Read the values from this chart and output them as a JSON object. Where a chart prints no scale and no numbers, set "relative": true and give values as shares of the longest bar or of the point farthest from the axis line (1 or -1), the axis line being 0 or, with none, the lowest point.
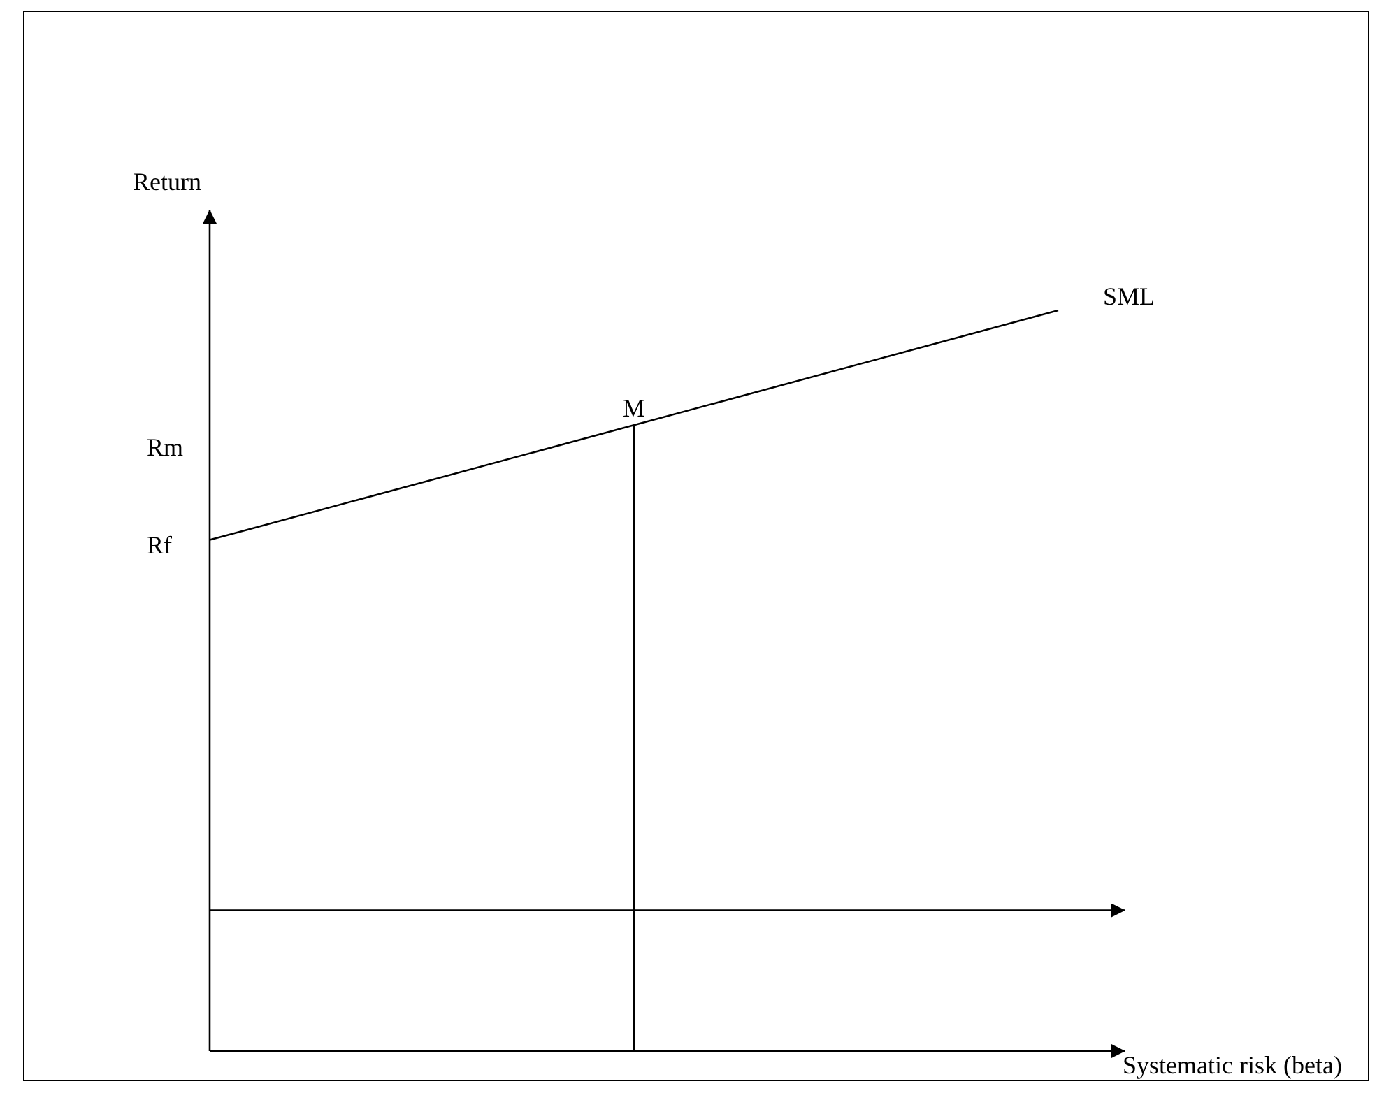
{
  "chart_data": {
    "type": "line",
    "relative": true,
    "ylabel": "Return",
    "xlabel": "Systematic risk (beta)",
    "categories": [
      null,
      null,
      null
    ],
    "series": [
      {
        "name": "SML",
        "color": "#000000",
        "values": [
          0.69,
          0.845,
          1
        ]
      }
    ],
    "ref_lines": [
      {
        "axis": "y",
        "value": 0.19
      }
    ],
    "annotations": [
      "Rm",
      "Rf",
      {
        "text": "M",
        "y": 0.845
      }
    ],
    "marker": "none",
    "legend": false
  }
}
